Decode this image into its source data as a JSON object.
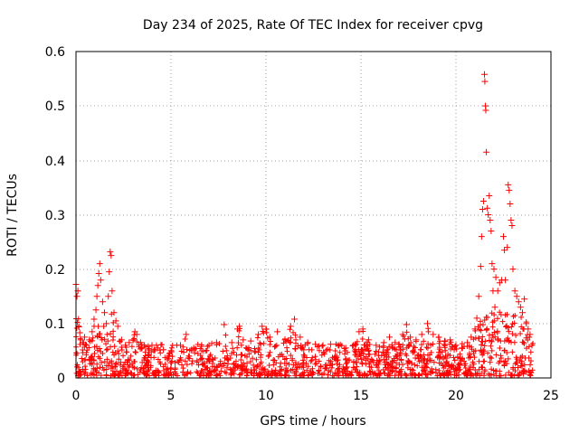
{
  "chart_data": {
    "type": "scatter",
    "title": "Day 234 of 2025, Rate Of TEC Index for receiver cpvg",
    "xlabel": "GPS time / hours",
    "ylabel": "ROTI / TECUs",
    "xlim": [
      0,
      25
    ],
    "ylim": [
      0,
      0.6
    ],
    "xticks": [
      "0",
      "5",
      "10",
      "15",
      "20",
      "25"
    ],
    "yticks": [
      "0",
      "0.1",
      "0.2",
      "0.3",
      "0.4",
      "0.5",
      "0.6"
    ],
    "grid": true,
    "marker": "+",
    "color": "#ff0000",
    "series": [
      {
        "points": [
          [
            0.0,
            0.172
          ],
          [
            0.05,
            0.15
          ],
          [
            0.1,
            0.16
          ],
          [
            0.15,
            0.094
          ],
          [
            0.2,
            0.083
          ],
          [
            0.25,
            0.07
          ],
          [
            0.35,
            0.065
          ],
          [
            0.45,
            0.075
          ],
          [
            0.55,
            0.06
          ],
          [
            0.7,
            0.07
          ],
          [
            0.85,
            0.085
          ],
          [
            0.95,
            0.108
          ],
          [
            1.05,
            0.125
          ],
          [
            1.1,
            0.15
          ],
          [
            1.15,
            0.17
          ],
          [
            1.2,
            0.192
          ],
          [
            1.25,
            0.21
          ],
          [
            1.3,
            0.18
          ],
          [
            1.4,
            0.14
          ],
          [
            1.5,
            0.12
          ],
          [
            1.6,
            0.1
          ],
          [
            1.7,
            0.15
          ],
          [
            1.75,
            0.195
          ],
          [
            1.8,
            0.232
          ],
          [
            1.85,
            0.225
          ],
          [
            1.9,
            0.16
          ],
          [
            2.0,
            0.12
          ],
          [
            2.1,
            0.105
          ],
          [
            2.2,
            0.095
          ],
          [
            2.4,
            0.07
          ],
          [
            2.6,
            0.06
          ],
          [
            2.8,
            0.065
          ],
          [
            3.0,
            0.07
          ],
          [
            3.1,
            0.085
          ],
          [
            3.2,
            0.08
          ],
          [
            3.4,
            0.065
          ],
          [
            3.6,
            0.06
          ],
          [
            3.8,
            0.058
          ],
          [
            4.0,
            0.06
          ],
          [
            4.3,
            0.055
          ],
          [
            4.6,
            0.052
          ],
          [
            5.0,
            0.05
          ],
          [
            5.5,
            0.06
          ],
          [
            5.8,
            0.08
          ],
          [
            6.2,
            0.055
          ],
          [
            6.6,
            0.058
          ],
          [
            7.0,
            0.06
          ],
          [
            7.4,
            0.065
          ],
          [
            7.8,
            0.098
          ],
          [
            8.2,
            0.065
          ],
          [
            8.5,
            0.09
          ],
          [
            8.6,
            0.095
          ],
          [
            8.8,
            0.07
          ],
          [
            9.2,
            0.068
          ],
          [
            9.6,
            0.08
          ],
          [
            9.8,
            0.095
          ],
          [
            10.0,
            0.09
          ],
          [
            10.2,
            0.075
          ],
          [
            10.6,
            0.085
          ],
          [
            11.0,
            0.07
          ],
          [
            11.3,
            0.095
          ],
          [
            11.5,
            0.108
          ],
          [
            11.8,
            0.075
          ],
          [
            12.2,
            0.065
          ],
          [
            12.6,
            0.062
          ],
          [
            13.0,
            0.06
          ],
          [
            13.4,
            0.062
          ],
          [
            13.8,
            0.06
          ],
          [
            14.2,
            0.055
          ],
          [
            14.6,
            0.06
          ],
          [
            14.9,
            0.085
          ],
          [
            15.1,
            0.09
          ],
          [
            15.4,
            0.07
          ],
          [
            15.8,
            0.06
          ],
          [
            16.2,
            0.065
          ],
          [
            16.5,
            0.075
          ],
          [
            16.8,
            0.065
          ],
          [
            17.2,
            0.08
          ],
          [
            17.4,
            0.098
          ],
          [
            17.6,
            0.075
          ],
          [
            17.9,
            0.07
          ],
          [
            18.2,
            0.08
          ],
          [
            18.5,
            0.1
          ],
          [
            18.8,
            0.08
          ],
          [
            19.1,
            0.075
          ],
          [
            19.4,
            0.068
          ],
          [
            19.7,
            0.07
          ],
          [
            20.0,
            0.06
          ],
          [
            20.3,
            0.055
          ],
          [
            20.6,
            0.065
          ],
          [
            20.8,
            0.075
          ],
          [
            21.0,
            0.09
          ],
          [
            21.1,
            0.11
          ],
          [
            21.2,
            0.15
          ],
          [
            21.3,
            0.205
          ],
          [
            21.35,
            0.26
          ],
          [
            21.4,
            0.31
          ],
          [
            21.45,
            0.325
          ],
          [
            21.5,
            0.558
          ],
          [
            21.52,
            0.545
          ],
          [
            21.55,
            0.5
          ],
          [
            21.57,
            0.492
          ],
          [
            21.6,
            0.415
          ],
          [
            21.65,
            0.312
          ],
          [
            21.7,
            0.3
          ],
          [
            21.75,
            0.335
          ],
          [
            21.8,
            0.29
          ],
          [
            21.85,
            0.27
          ],
          [
            21.9,
            0.21
          ],
          [
            21.95,
            0.16
          ],
          [
            22.0,
            0.2
          ],
          [
            22.05,
            0.13
          ],
          [
            22.1,
            0.185
          ],
          [
            22.2,
            0.16
          ],
          [
            22.3,
            0.175
          ],
          [
            22.4,
            0.18
          ],
          [
            22.5,
            0.26
          ],
          [
            22.55,
            0.235
          ],
          [
            22.6,
            0.18
          ],
          [
            22.7,
            0.24
          ],
          [
            22.75,
            0.355
          ],
          [
            22.8,
            0.345
          ],
          [
            22.85,
            0.32
          ],
          [
            22.9,
            0.29
          ],
          [
            22.95,
            0.28
          ],
          [
            23.0,
            0.2
          ],
          [
            23.1,
            0.16
          ],
          [
            23.2,
            0.15
          ],
          [
            23.3,
            0.14
          ],
          [
            23.4,
            0.13
          ],
          [
            23.5,
            0.12
          ],
          [
            23.6,
            0.145
          ],
          [
            23.7,
            0.1
          ],
          [
            23.8,
            0.09
          ],
          [
            23.9,
            0.08
          ],
          [
            24.0,
            0.06
          ]
        ]
      }
    ]
  }
}
